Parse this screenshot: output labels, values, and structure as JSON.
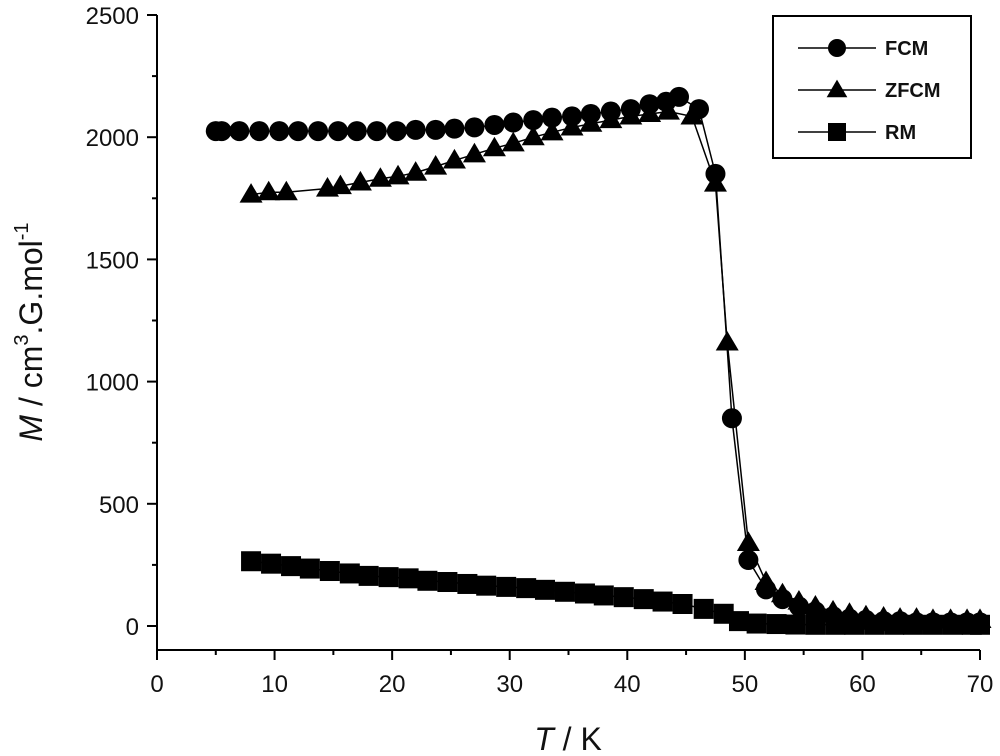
{
  "chart_data": {
    "type": "scatter",
    "title": "",
    "xlabel_var": "T",
    "xlabel_unit": " / K",
    "ylabel_var": "M",
    "ylabel_unit": " / cm",
    "ylabel_sup1": "3",
    "ylabel_mid": ".G.mol",
    "ylabel_sup2": "-1",
    "xlim": [
      0,
      70
    ],
    "ylim": [
      -100,
      2500
    ],
    "xticks": [
      0,
      10,
      20,
      30,
      40,
      50,
      60,
      70
    ],
    "yticks": [
      0,
      500,
      1000,
      1500,
      2000,
      2500
    ],
    "grid": false,
    "legend_placement": "top-right",
    "series": [
      {
        "name": "FCM",
        "marker": "circle",
        "x": [
          5,
          5.5,
          7,
          8.7,
          10.4,
          12,
          13.7,
          15.4,
          17,
          18.7,
          20.4,
          22,
          23.7,
          25.3,
          27,
          28.7,
          30.3,
          32,
          33.6,
          35.3,
          36.9,
          38.6,
          40.3,
          41.9,
          43.3,
          44.4,
          46.1,
          47.5,
          48.9,
          50.3,
          51.8,
          53.2,
          54.6,
          56,
          57.5,
          58.9,
          60.3,
          61.8,
          63.2,
          64.6,
          66,
          67.5,
          68.9,
          70
        ],
        "y": [
          2025,
          2025,
          2025,
          2025,
          2025,
          2025,
          2025,
          2025,
          2025,
          2025,
          2025,
          2030,
          2030,
          2035,
          2040,
          2050,
          2060,
          2070,
          2080,
          2085,
          2095,
          2105,
          2115,
          2135,
          2145,
          2165,
          2115,
          1850,
          850,
          270,
          150,
          110,
          80,
          60,
          40,
          30,
          25,
          20,
          20,
          15,
          15,
          15,
          15,
          15
        ]
      },
      {
        "name": "ZFCM",
        "marker": "triangle",
        "x": [
          8,
          9.5,
          11,
          14.5,
          15.6,
          17.3,
          19,
          20.5,
          22,
          23.7,
          25.3,
          27,
          28.7,
          30.3,
          32,
          33.6,
          35.3,
          36.9,
          38.6,
          40.3,
          41.9,
          43.5,
          45.5,
          47.5,
          48.5,
          50.3,
          51.8,
          53.2,
          54.6,
          56,
          57.5,
          58.9,
          60.3,
          61.8,
          63.2,
          64.6,
          66,
          67.5,
          68.9,
          70
        ],
        "y": [
          1765,
          1775,
          1775,
          1790,
          1800,
          1815,
          1830,
          1840,
          1855,
          1880,
          1905,
          1930,
          1955,
          1975,
          2000,
          2020,
          2040,
          2055,
          2070,
          2085,
          2095,
          2105,
          2085,
          1810,
          1160,
          340,
          180,
          130,
          100,
          80,
          60,
          50,
          40,
          35,
          30,
          30,
          25,
          25,
          25,
          25
        ]
      },
      {
        "name": "RM",
        "marker": "square",
        "x": [
          8,
          9.7,
          11.4,
          13,
          14.7,
          16.4,
          18,
          19.7,
          21.4,
          23,
          24.7,
          26.4,
          28,
          29.7,
          31.4,
          33,
          34.7,
          36.4,
          38,
          39.7,
          41.4,
          43,
          44.7,
          46.5,
          48.2,
          49.5,
          51,
          52.7,
          54.3,
          56,
          57.7,
          59.3,
          61,
          62.7,
          64.3,
          66,
          67.7,
          69.3,
          70
        ],
        "y": [
          265,
          255,
          245,
          235,
          225,
          215,
          205,
          200,
          195,
          185,
          180,
          172,
          165,
          160,
          155,
          148,
          140,
          133,
          125,
          118,
          110,
          100,
          90,
          70,
          50,
          20,
          10,
          8,
          6,
          5,
          5,
          5,
          5,
          5,
          5,
          5,
          5,
          5,
          5
        ]
      }
    ]
  }
}
